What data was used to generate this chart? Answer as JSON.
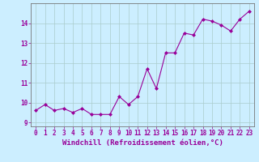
{
  "x": [
    0,
    1,
    2,
    3,
    4,
    5,
    6,
    7,
    8,
    9,
    10,
    11,
    12,
    13,
    14,
    15,
    16,
    17,
    18,
    19,
    20,
    21,
    22,
    23
  ],
  "y": [
    9.6,
    9.9,
    9.6,
    9.7,
    9.5,
    9.7,
    9.4,
    9.4,
    9.4,
    10.3,
    9.9,
    10.3,
    11.7,
    10.7,
    12.5,
    12.5,
    13.5,
    13.4,
    14.2,
    14.1,
    13.9,
    13.6,
    14.2,
    14.6
  ],
  "line_color": "#990099",
  "marker": "D",
  "marker_size": 2,
  "bg_color": "#cceeff",
  "grid_color": "#aacccc",
  "xlabel": "Windchill (Refroidissement éolien,°C)",
  "xlim": [
    -0.5,
    23.5
  ],
  "ylim": [
    8.8,
    15.0
  ],
  "yticks": [
    9,
    10,
    11,
    12,
    13,
    14
  ],
  "xticks": [
    0,
    1,
    2,
    3,
    4,
    5,
    6,
    7,
    8,
    9,
    10,
    11,
    12,
    13,
    14,
    15,
    16,
    17,
    18,
    19,
    20,
    21,
    22,
    23
  ],
  "tick_color": "#990099",
  "label_color": "#990099",
  "font_size_ticks": 5.5,
  "font_size_xlabel": 6.5
}
